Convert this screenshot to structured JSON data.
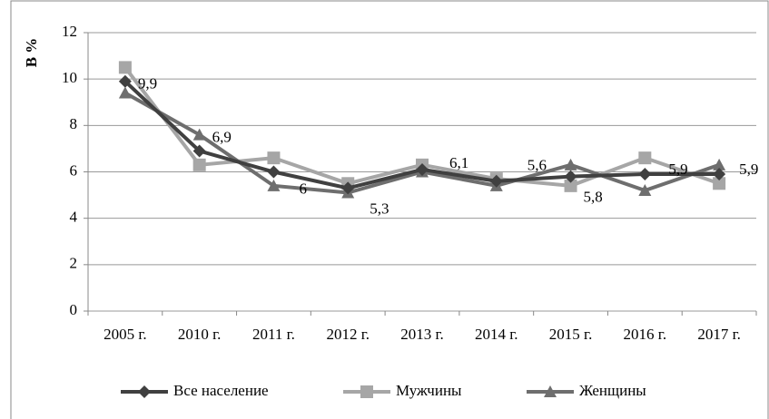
{
  "chart_data": {
    "type": "line",
    "y_label": "В %",
    "categories": [
      "2005 г.",
      "2010 г.",
      "2011 г.",
      "2012 г.",
      "2013 г.",
      "2014 г.",
      "2015 г.",
      "2016 г.",
      "2017 г."
    ],
    "series": [
      {
        "name": "Все население",
        "color": "#404040",
        "marker": "diamond",
        "values": [
          9.9,
          6.9,
          6.0,
          5.3,
          6.1,
          5.6,
          5.8,
          5.9,
          5.9
        ],
        "value_labels": [
          "9,9",
          "6,9",
          "6",
          "5,3",
          "6,1",
          "5,6",
          "5,8",
          "5,9",
          "5,9"
        ]
      },
      {
        "name": "Мужчины",
        "color": "#a6a6a6",
        "marker": "square",
        "values": [
          10.5,
          6.3,
          6.6,
          5.5,
          6.3,
          5.7,
          5.4,
          6.6,
          5.5
        ]
      },
      {
        "name": "Женщины",
        "color": "#6e6e6e",
        "marker": "triangle",
        "values": [
          9.4,
          7.6,
          5.4,
          5.1,
          6.0,
          5.4,
          6.3,
          5.2,
          6.3
        ]
      }
    ],
    "ylim": [
      0,
      12
    ],
    "yticks": [
      0,
      2,
      4,
      6,
      8,
      10,
      12
    ],
    "grid": true,
    "legend": "bottom"
  }
}
